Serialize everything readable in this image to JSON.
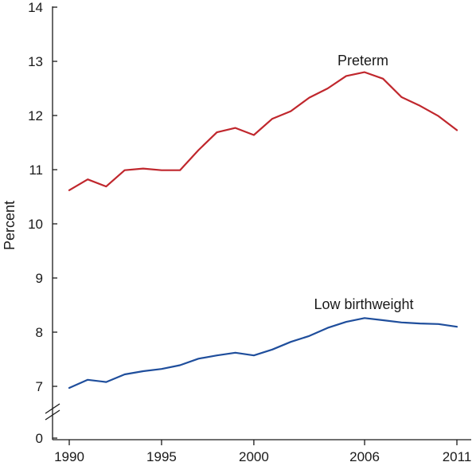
{
  "chart_data": {
    "type": "line",
    "title": "",
    "xlabel": "",
    "ylabel": "Percent",
    "x": [
      1990,
      1991,
      1992,
      1993,
      1994,
      1995,
      1996,
      1997,
      1998,
      1999,
      2000,
      2001,
      2002,
      2003,
      2004,
      2005,
      2006,
      2007,
      2008,
      2009,
      2010,
      2011
    ],
    "x_ticks": [
      1990,
      1995,
      2000,
      2006,
      2011
    ],
    "x_tick_labels": [
      "1990",
      "1995",
      "2000",
      "2006",
      "2011"
    ],
    "xlim": [
      1990,
      2011
    ],
    "y_ticks": [
      0,
      7,
      8,
      9,
      10,
      11,
      12,
      13,
      14
    ],
    "y_tick_labels": [
      "0",
      "7",
      "8",
      "9",
      "10",
      "11",
      "12",
      "13",
      "14"
    ],
    "ylim": [
      0,
      14
    ],
    "y_axis_break": [
      0,
      7
    ],
    "grid": false,
    "legend": "none",
    "series": [
      {
        "name": "Preterm",
        "color": "#c0272d",
        "values": [
          10.62,
          10.82,
          10.69,
          10.99,
          11.02,
          10.99,
          10.99,
          11.36,
          11.69,
          11.77,
          11.64,
          11.94,
          12.08,
          12.33,
          12.5,
          12.73,
          12.8,
          12.68,
          12.34,
          12.18,
          11.99,
          11.73
        ]
      },
      {
        "name": "Low birthweight",
        "color": "#1f4e9c",
        "values": [
          6.97,
          7.12,
          7.08,
          7.22,
          7.28,
          7.32,
          7.39,
          7.51,
          7.57,
          7.62,
          7.57,
          7.68,
          7.82,
          7.93,
          8.08,
          8.19,
          8.26,
          8.22,
          8.18,
          8.16,
          8.15,
          8.1
        ]
      }
    ]
  }
}
